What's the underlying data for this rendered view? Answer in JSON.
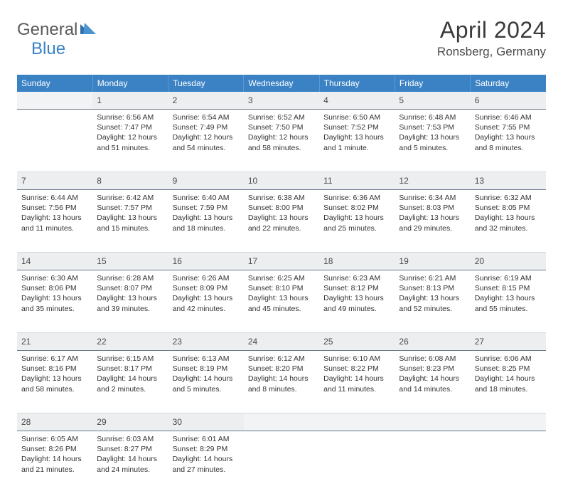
{
  "brand": {
    "word1": "General",
    "word2": "Blue"
  },
  "title": "April 2024",
  "location": "Ronsberg, Germany",
  "colors": {
    "header_bg": "#3b82c4",
    "header_text": "#ffffff",
    "daynum_bg": "#eceef0",
    "daynum_border": "#6a7a8a",
    "text": "#333333",
    "brand_gray": "#5a5a5a",
    "brand_blue": "#3b82c4"
  },
  "day_headers": [
    "Sunday",
    "Monday",
    "Tuesday",
    "Wednesday",
    "Thursday",
    "Friday",
    "Saturday"
  ],
  "weeks": [
    {
      "nums": [
        "",
        "1",
        "2",
        "3",
        "4",
        "5",
        "6"
      ],
      "cells": [
        null,
        {
          "sunrise": "6:56 AM",
          "sunset": "7:47 PM",
          "daylight": "12 hours and 51 minutes."
        },
        {
          "sunrise": "6:54 AM",
          "sunset": "7:49 PM",
          "daylight": "12 hours and 54 minutes."
        },
        {
          "sunrise": "6:52 AM",
          "sunset": "7:50 PM",
          "daylight": "12 hours and 58 minutes."
        },
        {
          "sunrise": "6:50 AM",
          "sunset": "7:52 PM",
          "daylight": "13 hours and 1 minute."
        },
        {
          "sunrise": "6:48 AM",
          "sunset": "7:53 PM",
          "daylight": "13 hours and 5 minutes."
        },
        {
          "sunrise": "6:46 AM",
          "sunset": "7:55 PM",
          "daylight": "13 hours and 8 minutes."
        }
      ]
    },
    {
      "nums": [
        "7",
        "8",
        "9",
        "10",
        "11",
        "12",
        "13"
      ],
      "cells": [
        {
          "sunrise": "6:44 AM",
          "sunset": "7:56 PM",
          "daylight": "13 hours and 11 minutes."
        },
        {
          "sunrise": "6:42 AM",
          "sunset": "7:57 PM",
          "daylight": "13 hours and 15 minutes."
        },
        {
          "sunrise": "6:40 AM",
          "sunset": "7:59 PM",
          "daylight": "13 hours and 18 minutes."
        },
        {
          "sunrise": "6:38 AM",
          "sunset": "8:00 PM",
          "daylight": "13 hours and 22 minutes."
        },
        {
          "sunrise": "6:36 AM",
          "sunset": "8:02 PM",
          "daylight": "13 hours and 25 minutes."
        },
        {
          "sunrise": "6:34 AM",
          "sunset": "8:03 PM",
          "daylight": "13 hours and 29 minutes."
        },
        {
          "sunrise": "6:32 AM",
          "sunset": "8:05 PM",
          "daylight": "13 hours and 32 minutes."
        }
      ]
    },
    {
      "nums": [
        "14",
        "15",
        "16",
        "17",
        "18",
        "19",
        "20"
      ],
      "cells": [
        {
          "sunrise": "6:30 AM",
          "sunset": "8:06 PM",
          "daylight": "13 hours and 35 minutes."
        },
        {
          "sunrise": "6:28 AM",
          "sunset": "8:07 PM",
          "daylight": "13 hours and 39 minutes."
        },
        {
          "sunrise": "6:26 AM",
          "sunset": "8:09 PM",
          "daylight": "13 hours and 42 minutes."
        },
        {
          "sunrise": "6:25 AM",
          "sunset": "8:10 PM",
          "daylight": "13 hours and 45 minutes."
        },
        {
          "sunrise": "6:23 AM",
          "sunset": "8:12 PM",
          "daylight": "13 hours and 49 minutes."
        },
        {
          "sunrise": "6:21 AM",
          "sunset": "8:13 PM",
          "daylight": "13 hours and 52 minutes."
        },
        {
          "sunrise": "6:19 AM",
          "sunset": "8:15 PM",
          "daylight": "13 hours and 55 minutes."
        }
      ]
    },
    {
      "nums": [
        "21",
        "22",
        "23",
        "24",
        "25",
        "26",
        "27"
      ],
      "cells": [
        {
          "sunrise": "6:17 AM",
          "sunset": "8:16 PM",
          "daylight": "13 hours and 58 minutes."
        },
        {
          "sunrise": "6:15 AM",
          "sunset": "8:17 PM",
          "daylight": "14 hours and 2 minutes."
        },
        {
          "sunrise": "6:13 AM",
          "sunset": "8:19 PM",
          "daylight": "14 hours and 5 minutes."
        },
        {
          "sunrise": "6:12 AM",
          "sunset": "8:20 PM",
          "daylight": "14 hours and 8 minutes."
        },
        {
          "sunrise": "6:10 AM",
          "sunset": "8:22 PM",
          "daylight": "14 hours and 11 minutes."
        },
        {
          "sunrise": "6:08 AM",
          "sunset": "8:23 PM",
          "daylight": "14 hours and 14 minutes."
        },
        {
          "sunrise": "6:06 AM",
          "sunset": "8:25 PM",
          "daylight": "14 hours and 18 minutes."
        }
      ]
    },
    {
      "nums": [
        "28",
        "29",
        "30",
        "",
        "",
        "",
        ""
      ],
      "cells": [
        {
          "sunrise": "6:05 AM",
          "sunset": "8:26 PM",
          "daylight": "14 hours and 21 minutes."
        },
        {
          "sunrise": "6:03 AM",
          "sunset": "8:27 PM",
          "daylight": "14 hours and 24 minutes."
        },
        {
          "sunrise": "6:01 AM",
          "sunset": "8:29 PM",
          "daylight": "14 hours and 27 minutes."
        },
        null,
        null,
        null,
        null
      ]
    }
  ],
  "labels": {
    "sunrise": "Sunrise:",
    "sunset": "Sunset:",
    "daylight": "Daylight:"
  }
}
